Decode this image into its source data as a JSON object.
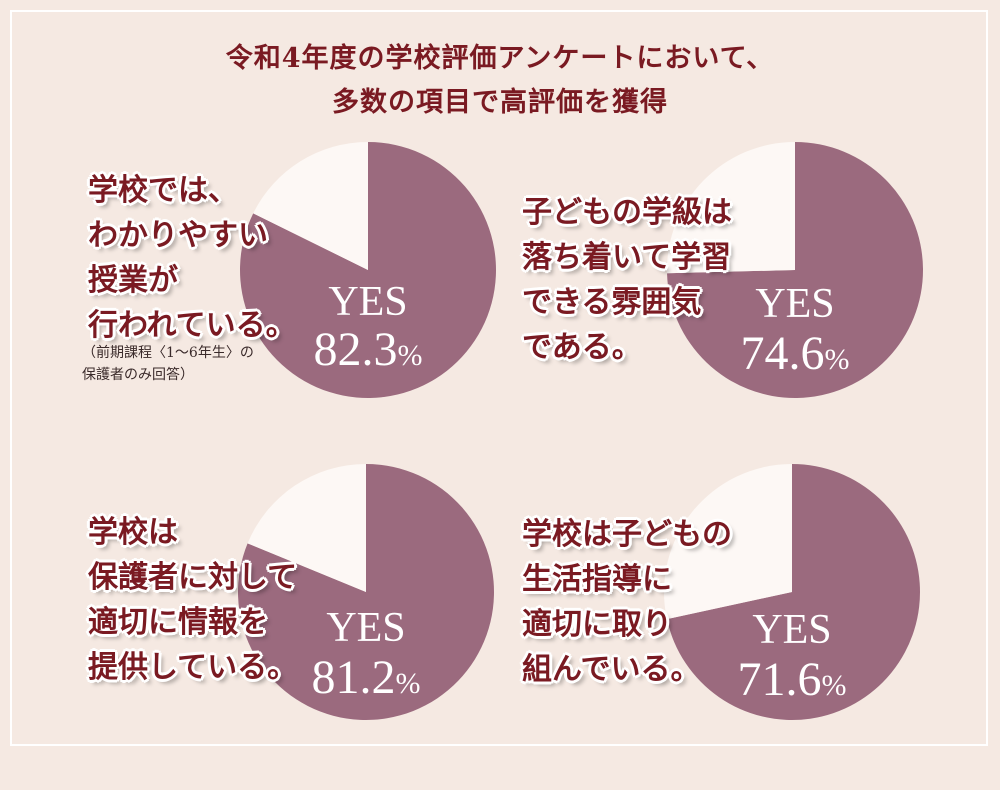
{
  "heading": {
    "line1": "令和4年度の学校評価アンケートにおいて、",
    "line2": "多数の項目で高評価を獲得"
  },
  "colors": {
    "yes": "#9b6a7e",
    "no": "#fdf8f5",
    "title": "#7a1a22",
    "background": "#f5e9e2"
  },
  "yes_word": "YES",
  "chart_data": [
    {
      "type": "pie",
      "title": "",
      "label_lines": [
        "学校では、",
        "わかりやすい",
        "授業が",
        "行われている。"
      ],
      "note_lines": [
        "（前期課程〈1〜6年生〉の",
        "保護者のみ回答）"
      ],
      "categories": [
        "YES",
        ""
      ],
      "values": [
        82.3,
        17.7
      ],
      "value_number": "82.3",
      "value_unit": "%"
    },
    {
      "type": "pie",
      "title": "",
      "label_lines": [
        "子どもの学級は",
        "落ち着いて学習",
        "できる雰囲気",
        "である。"
      ],
      "note_lines": [],
      "categories": [
        "YES",
        ""
      ],
      "values": [
        74.6,
        25.4
      ],
      "value_number": "74.6",
      "value_unit": "%"
    },
    {
      "type": "pie",
      "title": "",
      "label_lines": [
        "学校は",
        "保護者に対して",
        "適切に情報を",
        "提供している。"
      ],
      "note_lines": [],
      "categories": [
        "YES",
        ""
      ],
      "values": [
        81.2,
        18.8
      ],
      "value_number": "81.2",
      "value_unit": "%"
    },
    {
      "type": "pie",
      "title": "",
      "label_lines": [
        "学校は子どもの",
        "生活指導に",
        "適切に取り",
        "組んでいる。"
      ],
      "note_lines": [],
      "categories": [
        "YES",
        ""
      ],
      "values": [
        71.6,
        28.4
      ],
      "value_number": "71.6",
      "value_unit": "%"
    }
  ]
}
